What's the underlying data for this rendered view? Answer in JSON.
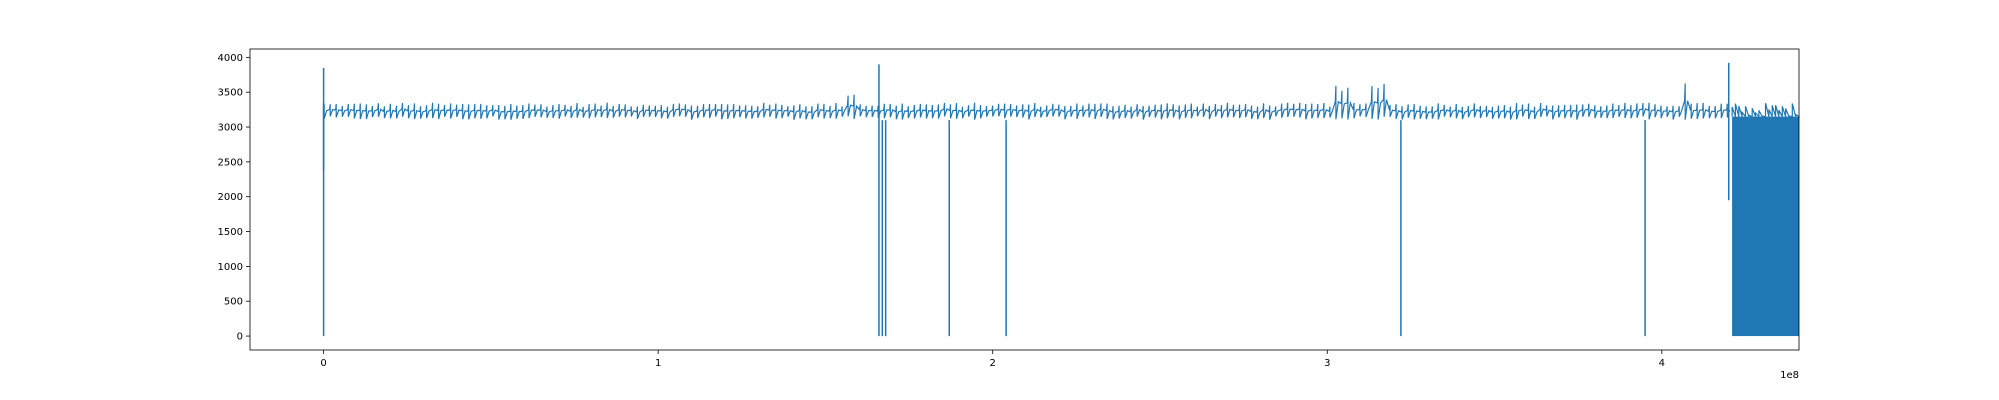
{
  "chart_data": {
    "type": "line",
    "title": "",
    "xlabel": "",
    "ylabel": "",
    "x_offset_label": "1e8",
    "xlim": [
      -0.22,
      4.41
    ],
    "ylim": [
      -200,
      4120
    ],
    "x_ticks": [
      0,
      1,
      2,
      3,
      4
    ],
    "x_tick_labels": [
      "0",
      "1",
      "2",
      "3",
      "4"
    ],
    "y_ticks": [
      0,
      500,
      1000,
      1500,
      2000,
      2500,
      3000,
      3500,
      4000
    ],
    "y_tick_labels": [
      "0",
      "500",
      "1000",
      "1500",
      "2000",
      "2500",
      "3000",
      "3500",
      "4000"
    ],
    "grid": false,
    "legend": "none",
    "series": [
      {
        "color": "#1f77b4",
        "baseline_low": 3130,
        "baseline_high": 3320,
        "x_start": 0.0,
        "x_end": 4.21,
        "oscillation_period": 0.018,
        "dense_block": {
          "x_start": 4.21,
          "x_end": 4.41,
          "y_low": 0,
          "y_high": 3150
        },
        "spikes": [
          {
            "x": 0.0,
            "y_top": 3850,
            "y_bottom": 0
          },
          {
            "x": 0.0,
            "y_top": 3350,
            "y_bottom": 2380
          },
          {
            "x": 1.66,
            "y_top": 3900,
            "y_bottom": 0
          },
          {
            "x": 1.67,
            "y_top": 3100,
            "y_bottom": 0
          },
          {
            "x": 1.68,
            "y_top": 3100,
            "y_bottom": 0
          },
          {
            "x": 1.87,
            "y_top": 3100,
            "y_bottom": 0
          },
          {
            "x": 2.04,
            "y_top": 3100,
            "y_bottom": 0
          },
          {
            "x": 3.22,
            "y_top": 3100,
            "y_bottom": 0
          },
          {
            "x": 3.95,
            "y_top": 3100,
            "y_bottom": 0
          },
          {
            "x": 4.2,
            "y_top": 3920,
            "y_bottom": 1950
          }
        ],
        "bumps": [
          {
            "x_start": 1.56,
            "x_end": 1.59,
            "y_high": 3480
          },
          {
            "x_start": 3.02,
            "x_end": 3.07,
            "y_high": 3600
          },
          {
            "x_start": 3.13,
            "x_end": 3.17,
            "y_high": 3620
          },
          {
            "x_start": 4.05,
            "x_end": 4.08,
            "y_high": 3640
          }
        ]
      }
    ]
  }
}
